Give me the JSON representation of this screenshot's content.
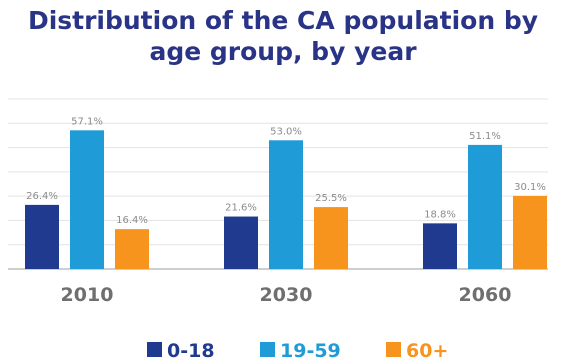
{
  "chart_data": {
    "type": "bar",
    "title_lines": [
      "Distribution of the CA population by",
      "age group, by year"
    ],
    "categories": [
      "2010",
      "2030",
      "2060"
    ],
    "series": [
      {
        "name": "0-18",
        "color": "#1f3a8f",
        "values": [
          26.4,
          21.6,
          18.8
        ],
        "labels": [
          "26.4%",
          "21.6%",
          "18.8%"
        ]
      },
      {
        "name": "19-59",
        "color": "#1f9bd7",
        "values": [
          57.1,
          53.0,
          51.1
        ],
        "labels": [
          "57.1%",
          "53.0%",
          "51.1%"
        ]
      },
      {
        "name": "60+",
        "color": "#f7941d",
        "values": [
          16.4,
          25.5,
          30.1
        ],
        "labels": [
          "16.4%",
          "25.5%",
          "30.1%"
        ]
      }
    ],
    "ylim": [
      0,
      70
    ],
    "grid": true,
    "legend_position": "bottom"
  }
}
